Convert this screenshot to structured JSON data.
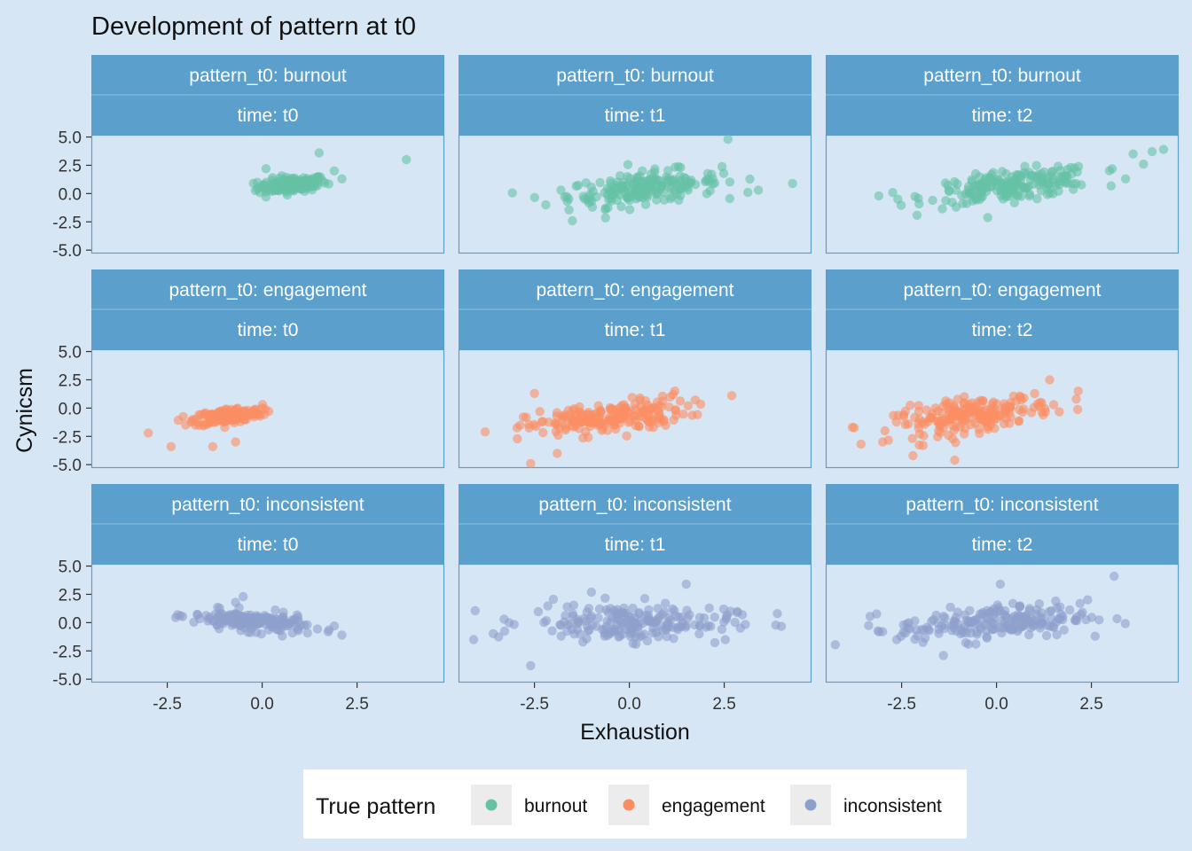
{
  "chart_data": {
    "type": "scatter",
    "title": "Development of pattern at t0",
    "xlabel": "Exhaustion",
    "ylabel": "Cynicsm",
    "xlim": [
      -4.5,
      4.8
    ],
    "ylim": [
      -5.3,
      5.2
    ],
    "x_ticks": [
      -2.5,
      0.0,
      2.5
    ],
    "x_tick_labels": [
      "-2.5",
      "0.0",
      "2.5"
    ],
    "y_ticks": [
      5.0,
      2.5,
      0.0,
      -2.5,
      -5.0
    ],
    "y_tick_labels": [
      "5.0",
      "2.5",
      "0.0",
      "-2.5",
      "-5.0"
    ],
    "grid": false,
    "legend": {
      "title": "True pattern",
      "position": "bottom",
      "entries": [
        "burnout",
        "engagement",
        "inconsistent"
      ]
    },
    "colors": {
      "burnout": "#66c2a5",
      "engagement": "#fc8d62",
      "inconsistent": "#8da0cb",
      "strip": "#5b9fcc",
      "panel_border": "#5b9fcc",
      "background": "#d6e6f5"
    },
    "facet_rows": [
      "pattern_t0: burnout",
      "pattern_t0: engagement",
      "pattern_t0: inconsistent"
    ],
    "facet_cols": [
      "time: t0",
      "time: t1",
      "time: t2"
    ],
    "panels": [
      {
        "row": 0,
        "col": 0,
        "series": "burnout",
        "x_center": 0.8,
        "x_spread": 0.45,
        "y_center": 0.8,
        "y_spread": 0.45,
        "slope": 0.25,
        "n": 170,
        "extra_points": [
          [
            3.8,
            3.0
          ],
          [
            1.5,
            3.6
          ],
          [
            2.1,
            1.3
          ],
          [
            1.9,
            2.0
          ],
          [
            0.1,
            2.2
          ],
          [
            0.1,
            -0.3
          ]
        ]
      },
      {
        "row": 0,
        "col": 1,
        "series": "burnout",
        "x_center": 0.4,
        "x_spread": 1.0,
        "y_center": 0.5,
        "y_spread": 0.9,
        "slope": 0.35,
        "n": 200,
        "extra_points": [
          [
            -2.2,
            -1.0
          ],
          [
            -1.5,
            -2.4
          ],
          [
            2.6,
            4.8
          ],
          [
            4.3,
            0.9
          ],
          [
            3.4,
            0.3
          ],
          [
            -1.8,
            0.3
          ]
        ]
      },
      {
        "row": 0,
        "col": 2,
        "series": "burnout",
        "x_center": 0.4,
        "x_spread": 1.1,
        "y_center": 0.7,
        "y_spread": 0.85,
        "slope": 0.4,
        "n": 200,
        "extra_points": [
          [
            -3.1,
            -0.2
          ],
          [
            4.4,
            3.9
          ],
          [
            4.1,
            3.7
          ],
          [
            3.6,
            3.5
          ],
          [
            3.4,
            1.3
          ],
          [
            -2.6,
            -0.5
          ]
        ]
      },
      {
        "row": 1,
        "col": 0,
        "series": "engagement",
        "x_center": -0.9,
        "x_spread": 0.45,
        "y_center": -0.7,
        "y_spread": 0.45,
        "slope": 0.35,
        "n": 170,
        "extra_points": [
          [
            -2.4,
            -3.4
          ],
          [
            -3.0,
            -2.2
          ],
          [
            -1.3,
            -3.4
          ],
          [
            -0.7,
            -3.0
          ],
          [
            -0.0,
            0.0
          ]
        ]
      },
      {
        "row": 1,
        "col": 1,
        "series": "engagement",
        "x_center": -0.6,
        "x_spread": 1.05,
        "y_center": -0.9,
        "y_spread": 0.9,
        "slope": 0.4,
        "n": 200,
        "extra_points": [
          [
            -2.6,
            -4.9
          ],
          [
            -3.8,
            -2.1
          ],
          [
            2.7,
            1.1
          ],
          [
            1.2,
            1.5
          ],
          [
            -2.5,
            1.3
          ],
          [
            -1.9,
            -4.0
          ]
        ]
      },
      {
        "row": 1,
        "col": 2,
        "series": "engagement",
        "x_center": -0.6,
        "x_spread": 1.05,
        "y_center": -0.6,
        "y_spread": 0.95,
        "slope": 0.45,
        "n": 200,
        "extra_points": [
          [
            -3.8,
            -1.7
          ],
          [
            -1.1,
            -4.6
          ],
          [
            2.1,
            0.8
          ],
          [
            1.4,
            2.5
          ],
          [
            -2.2,
            -4.2
          ],
          [
            -3.0,
            -3.0
          ]
        ]
      },
      {
        "row": 2,
        "col": 0,
        "series": "inconsistent",
        "x_center": -0.3,
        "x_spread": 0.75,
        "y_center": 0.1,
        "y_spread": 0.55,
        "slope": -0.3,
        "n": 180,
        "extra_points": [
          [
            2.1,
            -1.1
          ],
          [
            -0.5,
            2.3
          ],
          [
            -1.7,
            0.7
          ],
          [
            1.9,
            -0.3
          ],
          [
            -0.7,
            1.8
          ]
        ]
      },
      {
        "row": 2,
        "col": 1,
        "series": "inconsistent",
        "x_center": 0.0,
        "x_spread": 1.35,
        "y_center": 0.0,
        "y_spread": 1.1,
        "slope": 0.0,
        "n": 200,
        "extra_points": [
          [
            -4.1,
            -1.5
          ],
          [
            -2.6,
            -3.8
          ],
          [
            -1.0,
            2.7
          ],
          [
            1.5,
            3.4
          ],
          [
            3.9,
            0.8
          ],
          [
            -3.3,
            0.3
          ]
        ]
      },
      {
        "row": 2,
        "col": 2,
        "series": "inconsistent",
        "x_center": -0.1,
        "x_spread": 1.25,
        "y_center": 0.0,
        "y_spread": 1.0,
        "slope": 0.2,
        "n": 200,
        "extra_points": [
          [
            3.1,
            4.1
          ],
          [
            -3.0,
            -0.8
          ],
          [
            -1.4,
            -2.9
          ],
          [
            2.6,
            -1.2
          ],
          [
            0.1,
            3.4
          ],
          [
            2.2,
            1.7
          ]
        ]
      }
    ]
  }
}
